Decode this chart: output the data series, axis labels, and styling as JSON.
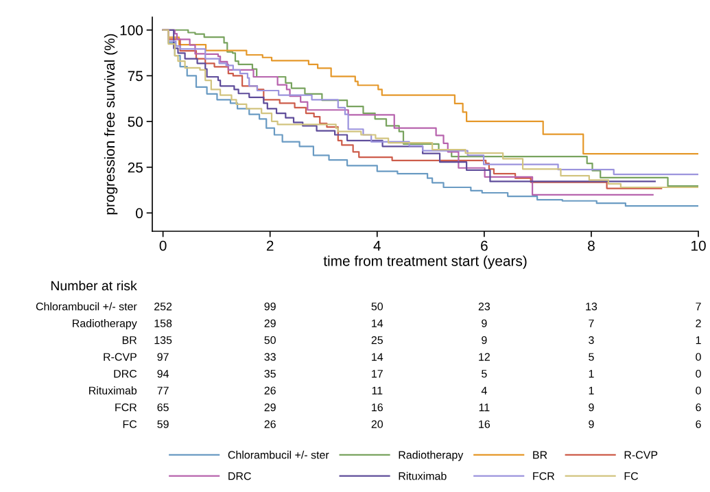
{
  "chart_data": {
    "type": "step",
    "xlabel": "time from treatment start (years)",
    "ylabel": "progression free survival (%)",
    "xlim": [
      -0.2,
      10
    ],
    "ylim": [
      -10,
      107
    ],
    "xticks": [
      0,
      2,
      4,
      6,
      8,
      10
    ],
    "yticks": [
      0,
      25,
      50,
      75,
      100
    ],
    "grid": false,
    "legend": "bottom",
    "line_style": "solid",
    "marker": "none",
    "series": [
      {
        "name": "Chlorambucil +/- ster",
        "color": "#6a9bc3",
        "x": [
          0,
          0.1,
          0.22,
          0.32,
          0.45,
          0.62,
          0.82,
          1.01,
          1.26,
          1.39,
          1.61,
          1.8,
          1.93,
          2.08,
          2.23,
          2.55,
          2.81,
          3.1,
          3.44,
          4.0,
          4.38,
          4.94,
          5.03,
          5.24,
          5.75,
          5.96,
          6.44,
          6.99,
          7.46,
          8.1,
          8.64,
          10
        ],
        "values": [
          100,
          93,
          86,
          80,
          75,
          68.8,
          65.1,
          61.9,
          60,
          57,
          53.9,
          51.4,
          46.4,
          42.7,
          38.9,
          36.4,
          31.5,
          29,
          25.9,
          22.8,
          21.5,
          19,
          16.5,
          14,
          12.2,
          11,
          9.1,
          7.2,
          6.6,
          5.3,
          3.8,
          3.8
        ]
      },
      {
        "name": "Radiotherapy",
        "color": "#78a35e",
        "x": [
          0,
          0.47,
          0.6,
          0.77,
          1.14,
          1.2,
          1.3,
          1.35,
          1.41,
          1.67,
          1.75,
          2.29,
          2.4,
          2.65,
          2.97,
          3.44,
          3.74,
          3.96,
          4.17,
          4.41,
          4.49,
          5.15,
          5.39,
          7.92,
          8.02,
          8.17,
          9.43,
          10
        ],
        "values": [
          100,
          98.6,
          97.8,
          96.1,
          93,
          88,
          87.4,
          83,
          81.2,
          78.7,
          74.4,
          71.1,
          68.2,
          65.1,
          61.6,
          58.2,
          54.5,
          51.4,
          47.6,
          44.5,
          37.7,
          34.6,
          30.8,
          27.1,
          23.1,
          19.3,
          14.7,
          14.7
        ]
      },
      {
        "name": "BR",
        "color": "#e5982a",
        "x": [
          0,
          0.1,
          0.3,
          0.8,
          1.56,
          1.86,
          2.03,
          2.72,
          2.89,
          3.14,
          3.59,
          3.64,
          4.02,
          4.09,
          5.45,
          5.6,
          5.67,
          7.1,
          7.85,
          10
        ],
        "values": [
          100,
          96,
          92,
          88.8,
          86.4,
          85,
          83.3,
          81.2,
          79.1,
          74.6,
          71.9,
          69.8,
          67.5,
          64.4,
          59.8,
          55.1,
          50.1,
          43,
          32.3,
          32.3
        ]
      },
      {
        "name": "R-CVP",
        "color": "#cd5c4a",
        "x": [
          0,
          0.1,
          0.32,
          0.62,
          0.79,
          0.96,
          1.22,
          1.31,
          1.48,
          1.76,
          1.88,
          2.18,
          2.46,
          2.67,
          2.82,
          2.93,
          3.06,
          3.27,
          3.34,
          3.55,
          3.66,
          4.28,
          6.03,
          6.09,
          6.18,
          6.58,
          6.87,
          8.29,
          9.31
        ],
        "values": [
          100,
          95,
          88.6,
          84.3,
          81.8,
          79.9,
          76.2,
          75,
          69.4,
          67.5,
          61.9,
          60,
          57.6,
          54.5,
          52.6,
          48.9,
          47,
          39.6,
          37.1,
          33.4,
          30.5,
          28.7,
          27.1,
          24,
          21.5,
          19,
          16.8,
          13.4,
          13.4
        ]
      },
      {
        "name": "DRC",
        "color": "#b763ad",
        "x": [
          0,
          0.22,
          0.26,
          0.5,
          0.6,
          0.79,
          1.03,
          1.07,
          1.2,
          1.22,
          1.69,
          2.14,
          2.31,
          2.37,
          2.57,
          2.7,
          3.46,
          4.32,
          5.1,
          5.24,
          5.32,
          5.52,
          6.01,
          6.9,
          9.15
        ],
        "values": [
          100,
          98,
          94.9,
          91.8,
          87,
          86.8,
          85.6,
          82.7,
          81.2,
          78.2,
          74.4,
          70,
          67.5,
          63.8,
          60.7,
          56.3,
          53.6,
          46.4,
          42.4,
          38.1,
          33.4,
          24.6,
          19.7,
          9.9,
          9.9
        ]
      },
      {
        "name": "Rituximab",
        "color": "#5e4c9a",
        "x": [
          0,
          0.2,
          0.28,
          0.41,
          0.64,
          0.79,
          0.82,
          1.03,
          1.07,
          1.33,
          1.41,
          1.61,
          1.88,
          1.95,
          2.12,
          2.29,
          2.44,
          2.61,
          2.87,
          3.21,
          3.44,
          4.1,
          4.85,
          5.17,
          5.67,
          6.11,
          9.19
        ],
        "values": [
          100,
          90,
          87.4,
          84.3,
          81.8,
          78.7,
          74.4,
          72.5,
          69.4,
          67.5,
          65.3,
          63.2,
          60,
          57,
          54.5,
          52,
          49.5,
          47.6,
          44.9,
          42.7,
          39.6,
          36.4,
          32.5,
          27.8,
          23.4,
          17.2,
          17.2
        ]
      },
      {
        "name": "FCR",
        "color": "#9b93dd",
        "x": [
          0,
          0.1,
          0.24,
          0.32,
          0.79,
          1.05,
          1.18,
          1.31,
          1.44,
          1.58,
          1.61,
          1.76,
          2.16,
          2.78,
          3.27,
          3.4,
          3.46,
          3.74,
          3.89,
          4.6,
          4.85,
          5.69,
          5.99,
          7.38,
          8.42,
          10
        ],
        "values": [
          100,
          94,
          91.2,
          89.6,
          84.3,
          81.8,
          80.6,
          78.2,
          76.2,
          73.8,
          69.4,
          66.9,
          64.4,
          61.9,
          57.6,
          53.9,
          45.8,
          42.7,
          38.9,
          36.7,
          34,
          31.5,
          26.5,
          23.7,
          21.1,
          21.1
        ]
      },
      {
        "name": "FC",
        "color": "#d2c47f",
        "x": [
          0,
          0.1,
          0.22,
          0.28,
          0.41,
          0.69,
          0.79,
          0.9,
          1.07,
          1.28,
          1.37,
          1.56,
          1.84,
          2.03,
          2.14,
          3.23,
          3.27,
          3.7,
          3.97,
          4.21,
          5.03,
          5.65,
          6.35,
          6.72,
          7.43,
          7.96,
          8.32,
          8.55,
          10
        ],
        "values": [
          100,
          92.4,
          86,
          83,
          79.3,
          78.2,
          72.5,
          67.5,
          64.4,
          61.9,
          59.4,
          57,
          54.5,
          50.1,
          48.4,
          46.4,
          44.5,
          42.7,
          40.8,
          38.3,
          34.6,
          32.7,
          29.6,
          24,
          20.3,
          18,
          15.9,
          14,
          14
        ]
      }
    ],
    "annotations": [
      "Number at risk",
      "Chlorambucil +/- ster",
      "252",
      "99",
      "50",
      "23",
      "13",
      "7",
      "Radiotherapy",
      "158",
      "29",
      "14",
      "9",
      "7",
      "2",
      "BR",
      "135",
      "50",
      "25",
      "9",
      "3",
      "1",
      "R-CVP",
      "97",
      "33",
      "14",
      "12",
      "5",
      "0",
      "DRC",
      "94",
      "35",
      "17",
      "5",
      "1",
      "0",
      "Rituximab",
      "77",
      "26",
      "11",
      "4",
      "1",
      "0",
      "FCR",
      "65",
      "29",
      "16",
      "11",
      "9",
      "6",
      "FC",
      "59",
      "26",
      "20",
      "16",
      "9",
      "6"
    ]
  }
}
